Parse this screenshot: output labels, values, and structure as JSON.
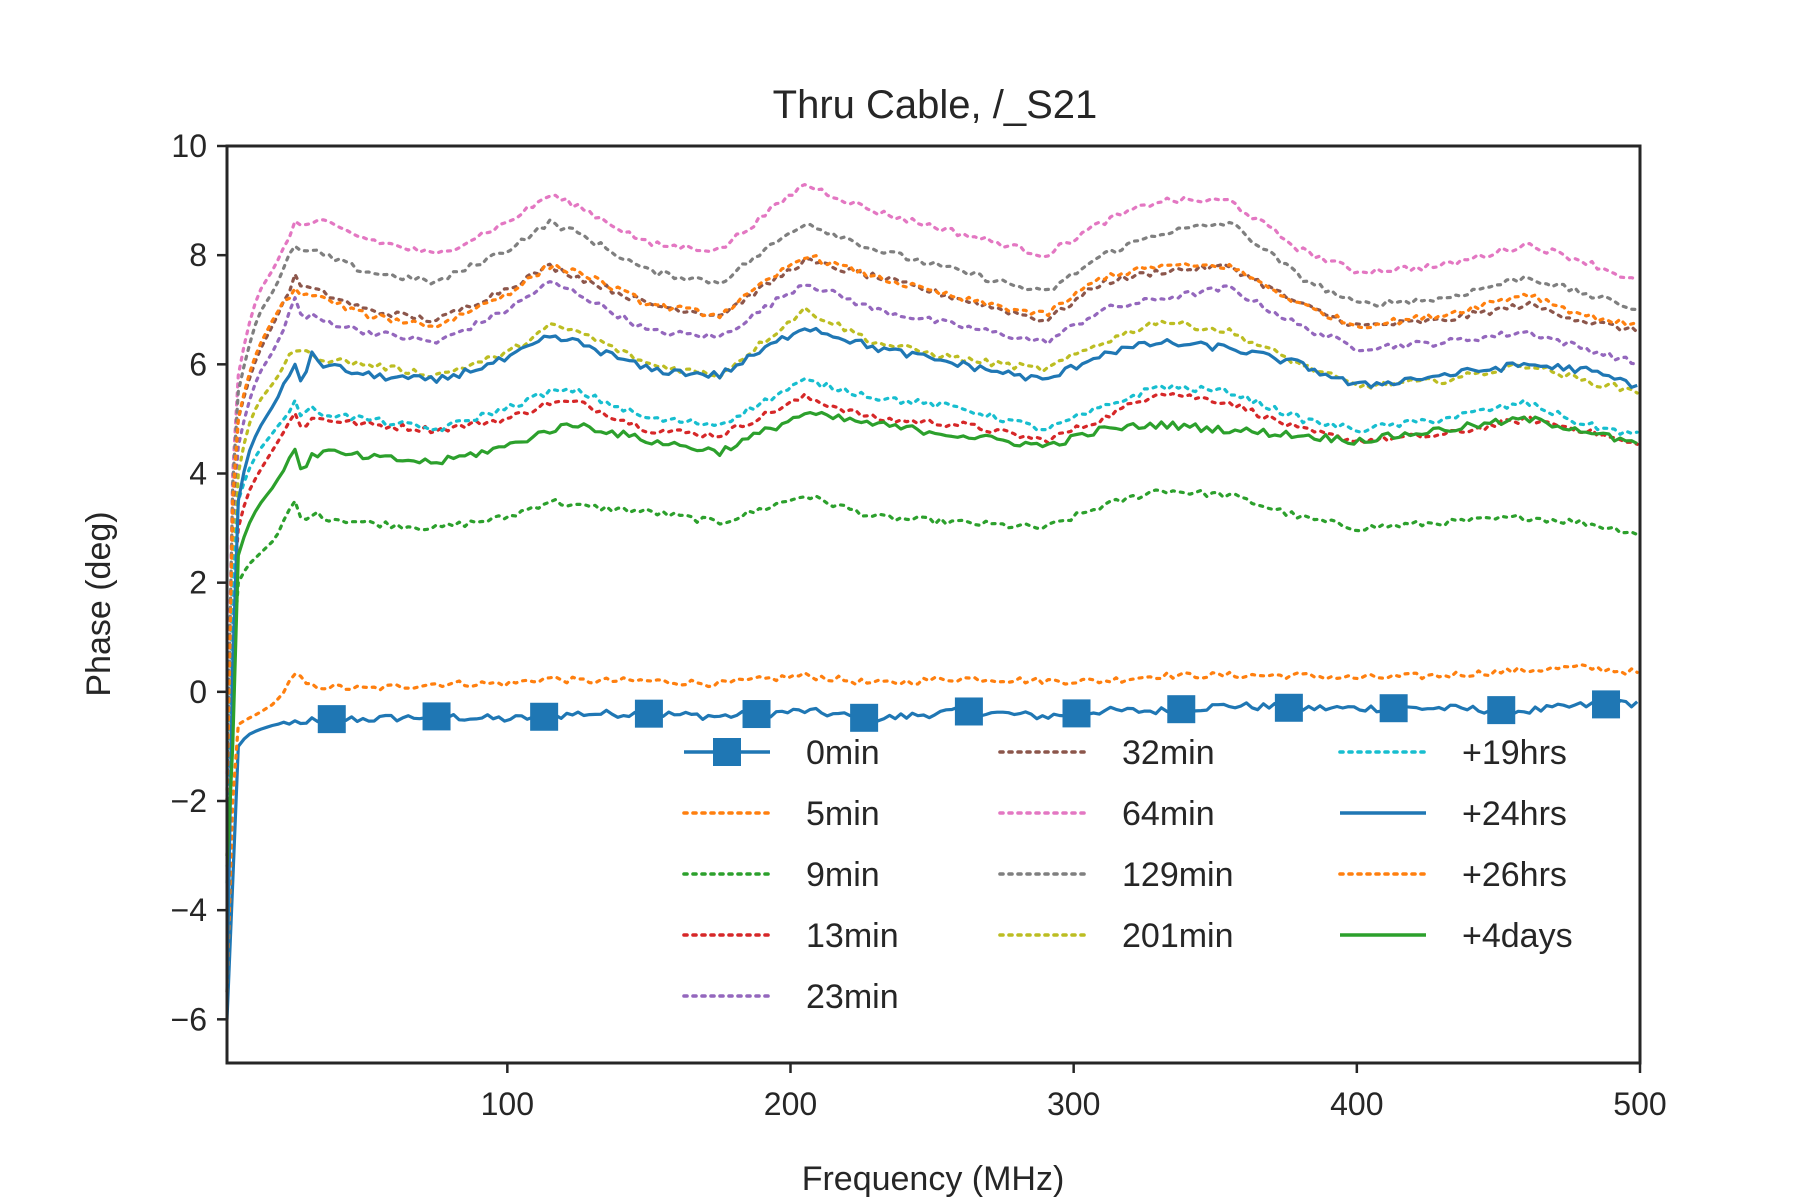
{
  "chart_data": {
    "type": "line",
    "title": "Thru Cable, /_S21",
    "xlabel": "Frequency (MHz)",
    "ylabel": "Phase (deg)",
    "xlim": [
      1,
      500
    ],
    "ylim": [
      -6.8,
      10
    ],
    "xticks": [
      100,
      200,
      300,
      400,
      500
    ],
    "xtick_labels": [
      "100",
      "200",
      "300",
      "400",
      "500"
    ],
    "yticks": [
      -6,
      -4,
      -2,
      0,
      2,
      4,
      6,
      8,
      10
    ],
    "ytick_labels": [
      "−6",
      "−4",
      "−2",
      "0",
      "2",
      "4",
      "6",
      "8",
      "10"
    ],
    "grid": false,
    "legend": {
      "position": "lower-right",
      "columns": 3
    },
    "x": [
      1,
      3,
      5,
      8,
      12,
      18,
      25,
      28,
      30,
      35,
      50,
      75,
      100,
      115,
      125,
      150,
      175,
      205,
      230,
      260,
      290,
      310,
      330,
      355,
      380,
      400,
      430,
      460,
      480,
      500
    ],
    "series": [
      {
        "name": "0min",
        "color": "#1f77b4",
        "style": "solid-marker",
        "markers_at": [
          38,
          75,
          113,
          150,
          188,
          226,
          263,
          301,
          338,
          376,
          413,
          451,
          488
        ],
        "values": [
          -6.0,
          -3.5,
          -1.0,
          -0.8,
          -0.7,
          -0.6,
          -0.55,
          -0.7,
          -0.5,
          -0.5,
          -0.5,
          -0.45,
          -0.5,
          -0.45,
          -0.4,
          -0.4,
          -0.45,
          -0.35,
          -0.5,
          -0.35,
          -0.45,
          -0.35,
          -0.35,
          -0.25,
          -0.3,
          -0.3,
          -0.3,
          -0.35,
          -0.25,
          -0.2
        ]
      },
      {
        "name": "5min",
        "color": "#ff7f0e",
        "style": "dotted",
        "values": [
          -5.5,
          -2.0,
          -0.6,
          -0.5,
          -0.4,
          -0.2,
          0.3,
          0.2,
          0.1,
          0.1,
          0.05,
          0.15,
          0.15,
          0.25,
          0.2,
          0.2,
          0.15,
          0.3,
          0.15,
          0.25,
          0.2,
          0.2,
          0.3,
          0.3,
          0.3,
          0.25,
          0.3,
          0.4,
          0.45,
          0.35
        ]
      },
      {
        "name": "9min",
        "color": "#2ca02c",
        "style": "dotted",
        "values": [
          -3.0,
          0.5,
          2.0,
          2.3,
          2.5,
          2.8,
          3.5,
          3.0,
          3.3,
          3.2,
          3.1,
          3.0,
          3.2,
          3.5,
          3.4,
          3.3,
          3.1,
          3.6,
          3.2,
          3.1,
          3.0,
          3.4,
          3.7,
          3.6,
          3.2,
          3.0,
          3.1,
          3.2,
          3.1,
          2.9
        ]
      },
      {
        "name": "13min",
        "color": "#d62728",
        "style": "dotted",
        "values": [
          -4.0,
          1.5,
          3.0,
          3.6,
          4.0,
          4.5,
          5.1,
          4.8,
          5.0,
          5.0,
          4.9,
          4.8,
          5.0,
          5.3,
          5.3,
          4.8,
          4.7,
          5.4,
          5.0,
          4.9,
          4.6,
          5.0,
          5.5,
          5.3,
          4.8,
          4.6,
          4.7,
          5.0,
          4.8,
          4.5
        ]
      },
      {
        "name": "23min",
        "color": "#9467bd",
        "style": "dotted",
        "values": [
          -2.0,
          3.0,
          4.5,
          5.2,
          5.8,
          6.3,
          7.2,
          6.8,
          6.9,
          6.8,
          6.6,
          6.4,
          7.0,
          7.5,
          7.3,
          6.6,
          6.5,
          7.5,
          7.0,
          6.7,
          6.4,
          7.0,
          7.2,
          7.4,
          6.7,
          6.3,
          6.4,
          6.6,
          6.3,
          6.0
        ]
      },
      {
        "name": "32min",
        "color": "#8c564b",
        "style": "dotted",
        "values": [
          -2.0,
          3.3,
          5.0,
          5.6,
          6.2,
          6.8,
          7.6,
          7.4,
          7.4,
          7.3,
          7.0,
          6.8,
          7.4,
          7.8,
          7.6,
          7.1,
          6.9,
          7.9,
          7.6,
          7.2,
          6.8,
          7.5,
          7.7,
          7.8,
          7.1,
          6.7,
          6.8,
          7.1,
          6.8,
          6.6
        ]
      },
      {
        "name": "64min",
        "color": "#e377c2",
        "style": "dotted",
        "values": [
          -1.5,
          4.0,
          5.8,
          6.6,
          7.3,
          7.8,
          8.6,
          8.5,
          8.6,
          8.6,
          8.3,
          8.0,
          8.6,
          9.1,
          8.9,
          8.2,
          8.1,
          9.3,
          8.8,
          8.4,
          8.0,
          8.6,
          9.0,
          9.0,
          8.1,
          7.7,
          7.8,
          8.2,
          7.9,
          7.5
        ]
      },
      {
        "name": "129min",
        "color": "#7f7f7f",
        "style": "dotted",
        "values": [
          -1.8,
          3.8,
          5.5,
          6.2,
          6.9,
          7.4,
          8.2,
          8.0,
          8.1,
          8.0,
          7.7,
          7.5,
          8.1,
          8.6,
          8.4,
          7.7,
          7.5,
          8.6,
          8.1,
          7.7,
          7.3,
          8.0,
          8.4,
          8.6,
          7.6,
          7.1,
          7.2,
          7.6,
          7.3,
          7.0
        ]
      },
      {
        "name": "201min",
        "color": "#bcbd22",
        "style": "dotted",
        "values": [
          -3.0,
          2.0,
          4.0,
          4.8,
          5.3,
          5.7,
          6.3,
          6.2,
          6.2,
          6.1,
          6.0,
          5.8,
          6.2,
          6.7,
          6.6,
          6.0,
          5.8,
          7.0,
          6.4,
          6.1,
          5.9,
          6.4,
          6.8,
          6.6,
          6.0,
          5.6,
          5.7,
          6.0,
          5.7,
          5.5
        ]
      },
      {
        "name": "+19hrs",
        "color": "#17becf",
        "style": "dotted",
        "values": [
          -3.5,
          1.8,
          3.5,
          4.0,
          4.4,
          4.8,
          5.3,
          5.0,
          5.2,
          5.1,
          5.0,
          4.8,
          5.2,
          5.5,
          5.5,
          5.0,
          4.9,
          5.7,
          5.4,
          5.2,
          4.8,
          5.2,
          5.6,
          5.5,
          5.0,
          4.8,
          5.0,
          5.3,
          4.9,
          4.7
        ]
      },
      {
        "name": "+24hrs",
        "color": "#1f77b4",
        "style": "solid",
        "values": [
          -5.5,
          0.5,
          3.5,
          4.3,
          4.8,
          5.3,
          6.0,
          5.6,
          6.2,
          6.0,
          5.8,
          5.7,
          6.1,
          6.5,
          6.4,
          5.9,
          5.8,
          6.7,
          6.3,
          6.0,
          5.7,
          6.2,
          6.4,
          6.3,
          6.0,
          5.6,
          5.8,
          6.0,
          5.9,
          5.6
        ]
      },
      {
        "name": "+26hrs",
        "color": "#ff7f0e",
        "style": "dotted",
        "values": [
          -2.0,
          3.5,
          5.0,
          5.7,
          6.3,
          6.9,
          7.4,
          7.2,
          7.3,
          7.2,
          6.9,
          6.7,
          7.3,
          7.8,
          7.7,
          7.1,
          6.9,
          8.0,
          7.6,
          7.2,
          6.9,
          7.6,
          7.8,
          7.8,
          7.1,
          6.7,
          6.9,
          7.3,
          6.9,
          6.7
        ]
      },
      {
        "name": "+4days",
        "color": "#2ca02c",
        "style": "solid",
        "values": [
          -3.2,
          -1.0,
          2.5,
          3.0,
          3.4,
          3.8,
          4.5,
          3.9,
          4.3,
          4.4,
          4.3,
          4.2,
          4.5,
          4.8,
          4.9,
          4.6,
          4.4,
          5.1,
          4.9,
          4.7,
          4.5,
          4.8,
          4.9,
          4.8,
          4.7,
          4.6,
          4.8,
          5.0,
          4.8,
          4.5
        ]
      }
    ]
  }
}
